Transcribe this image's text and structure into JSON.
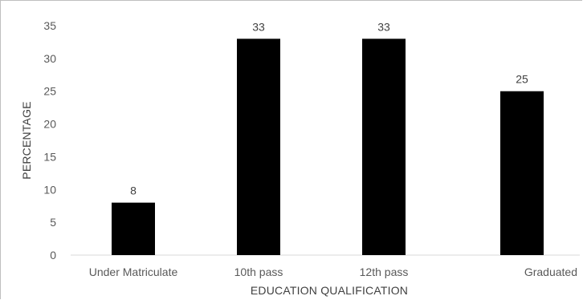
{
  "chart_data": {
    "type": "bar",
    "title": "",
    "xlabel": "EDUCATION QUALIFICATION",
    "ylabel": "PERCENTAGE",
    "categories": [
      "Under Matriculate",
      "10th pass",
      "12th pass",
      "Graduated"
    ],
    "values": [
      8,
      33,
      33,
      25
    ],
    "data_labels": [
      "8",
      "33",
      "33",
      "25"
    ],
    "yticks": [
      "0",
      "5",
      "10",
      "15",
      "20",
      "25",
      "30",
      "35"
    ],
    "ylim": [
      0,
      35
    ],
    "grid": false,
    "legend": "none",
    "bar_color": "#000000"
  }
}
